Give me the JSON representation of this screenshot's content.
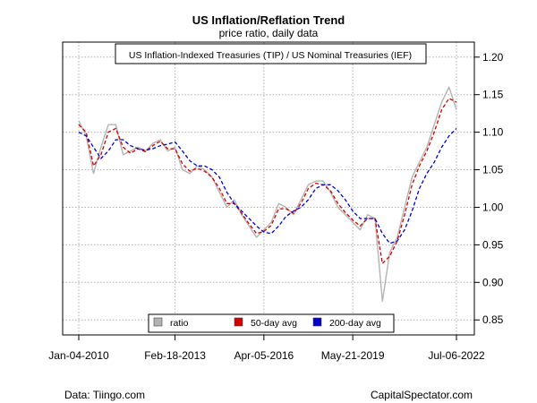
{
  "chart_data": {
    "type": "line",
    "title": "US Inflation/Reflation Trend",
    "subtitle": "price ratio, daily data",
    "annotation": "US Inflation-Indexed Treasuries (TIP) / US Nominal Treasuries (IEF)",
    "xlabel": "",
    "ylabel": "",
    "x_tick_labels": [
      "Jan-04-2010",
      "Feb-18-2013",
      "Apr-05-2016",
      "May-21-2019",
      "Jul-06-2022"
    ],
    "y_ticks": [
      "0.85",
      "0.90",
      "0.95",
      "1.00",
      "1.05",
      "1.10",
      "1.15",
      "1.20"
    ],
    "ylim": [
      0.83,
      1.22
    ],
    "y_axis_side": "right",
    "grid": true,
    "legend_position": "bottom-center",
    "x": [
      "Jan-04-2010",
      "Apr-2010",
      "Jul-2010",
      "Oct-2010",
      "Jan-2011",
      "Apr-2011",
      "Jul-2011",
      "Oct-2011",
      "Jan-2012",
      "Apr-2012",
      "Jul-2012",
      "Oct-2012",
      "Jan-2013",
      "Feb-18-2013",
      "Jun-2013",
      "Sep-2013",
      "Jan-2014",
      "Apr-2014",
      "Jul-2014",
      "Oct-2014",
      "Jan-2015",
      "Apr-2015",
      "Jul-2015",
      "Oct-2015",
      "Jan-2016",
      "Apr-05-2016",
      "Jul-2016",
      "Oct-2016",
      "Jan-2017",
      "Apr-2017",
      "Jul-2017",
      "Oct-2017",
      "Jan-2018",
      "Apr-2018",
      "Jul-2018",
      "Oct-2018",
      "Jan-2019",
      "May-21-2019",
      "Aug-2019",
      "Nov-2019",
      "Feb-2020",
      "Mar-2020",
      "Jun-2020",
      "Sep-2020",
      "Dec-2020",
      "Mar-2021",
      "Jun-2021",
      "Sep-2021",
      "Dec-2021",
      "Mar-2022",
      "May-2022",
      "Jul-06-2022"
    ],
    "series": [
      {
        "name": "ratio",
        "color": "#b3b3b3",
        "values": [
          1.115,
          1.095,
          1.045,
          1.08,
          1.11,
          1.11,
          1.07,
          1.075,
          1.08,
          1.075,
          1.085,
          1.09,
          1.075,
          1.08,
          1.05,
          1.045,
          1.055,
          1.05,
          1.04,
          1.02,
          1.0,
          1.01,
          0.99,
          0.975,
          0.96,
          0.97,
          0.98,
          1.005,
          1.0,
          0.99,
          1.01,
          1.03,
          1.035,
          1.035,
          1.02,
          1.0,
          0.99,
          0.98,
          0.97,
          0.99,
          0.985,
          0.875,
          0.94,
          0.96,
          1.0,
          1.04,
          1.06,
          1.08,
          1.11,
          1.14,
          1.16,
          1.13
        ]
      },
      {
        "name": "50-day avg",
        "color": "#d00000",
        "values": [
          1.11,
          1.1,
          1.055,
          1.07,
          1.1,
          1.105,
          1.08,
          1.072,
          1.078,
          1.074,
          1.082,
          1.088,
          1.078,
          1.078,
          1.058,
          1.048,
          1.052,
          1.048,
          1.04,
          1.025,
          1.005,
          1.005,
          0.992,
          0.978,
          0.965,
          0.968,
          0.976,
          0.998,
          0.998,
          0.992,
          1.005,
          1.025,
          1.032,
          1.03,
          1.022,
          1.005,
          0.993,
          0.983,
          0.975,
          0.985,
          0.985,
          0.925,
          0.935,
          0.955,
          0.99,
          1.03,
          1.055,
          1.075,
          1.1,
          1.13,
          1.145,
          1.14
        ]
      },
      {
        "name": "200-day avg",
        "color": "#0000cc",
        "values": [
          1.1,
          1.095,
          1.08,
          1.065,
          1.075,
          1.09,
          1.09,
          1.082,
          1.078,
          1.076,
          1.078,
          1.082,
          1.084,
          1.087,
          1.075,
          1.062,
          1.055,
          1.055,
          1.05,
          1.04,
          1.02,
          1.005,
          0.995,
          0.985,
          0.975,
          0.967,
          0.965,
          0.975,
          0.988,
          0.995,
          1.0,
          1.01,
          1.025,
          1.03,
          1.03,
          1.022,
          1.01,
          0.995,
          0.985,
          0.985,
          0.985,
          0.965,
          0.952,
          0.955,
          0.97,
          0.995,
          1.025,
          1.045,
          1.06,
          1.08,
          1.095,
          1.105
        ]
      }
    ]
  },
  "footer": {
    "left": "Data: Tiingo.com",
    "right": "CapitalSpectator.com"
  }
}
